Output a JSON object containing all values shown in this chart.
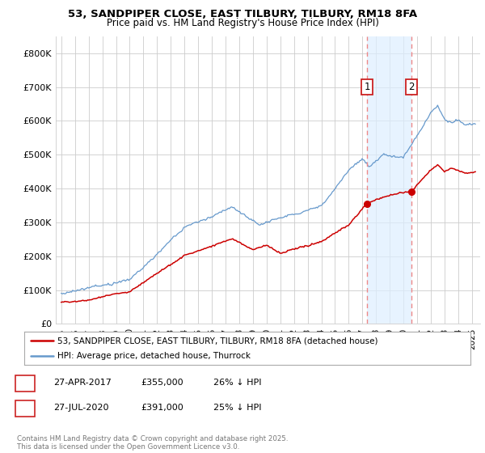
{
  "title": "53, SANDPIPER CLOSE, EAST TILBURY, TILBURY, RM18 8FA",
  "subtitle": "Price paid vs. HM Land Registry's House Price Index (HPI)",
  "ylim": [
    0,
    850000
  ],
  "yticks": [
    0,
    100000,
    200000,
    300000,
    400000,
    500000,
    600000,
    700000,
    800000
  ],
  "ytick_labels": [
    "£0",
    "£100K",
    "£200K",
    "£300K",
    "£400K",
    "£500K",
    "£600K",
    "£700K",
    "£800K"
  ],
  "xtick_years": [
    1995,
    1996,
    1997,
    1998,
    1999,
    2000,
    2001,
    2002,
    2003,
    2004,
    2005,
    2006,
    2007,
    2008,
    2009,
    2010,
    2011,
    2012,
    2013,
    2014,
    2015,
    2016,
    2017,
    2018,
    2019,
    2020,
    2021,
    2022,
    2023,
    2024,
    2025
  ],
  "red_line_color": "#cc0000",
  "blue_line_color": "#6699cc",
  "vline_color": "#ee8888",
  "shade_color": "#ddeeff",
  "marker1_year": 2017.33,
  "marker2_year": 2020.58,
  "marker1_price": 355000,
  "marker2_price": 391000,
  "legend_label_red": "53, SANDPIPER CLOSE, EAST TILBURY, TILBURY, RM18 8FA (detached house)",
  "legend_label_blue": "HPI: Average price, detached house, Thurrock",
  "table_rows": [
    {
      "num": "1",
      "date": "27-APR-2017",
      "price": "£355,000",
      "note": "26% ↓ HPI"
    },
    {
      "num": "2",
      "date": "27-JUL-2020",
      "price": "£391,000",
      "note": "25% ↓ HPI"
    }
  ],
  "footer": "Contains HM Land Registry data © Crown copyright and database right 2025.\nThis data is licensed under the Open Government Licence v3.0.",
  "background_color": "#ffffff",
  "grid_color": "#cccccc"
}
